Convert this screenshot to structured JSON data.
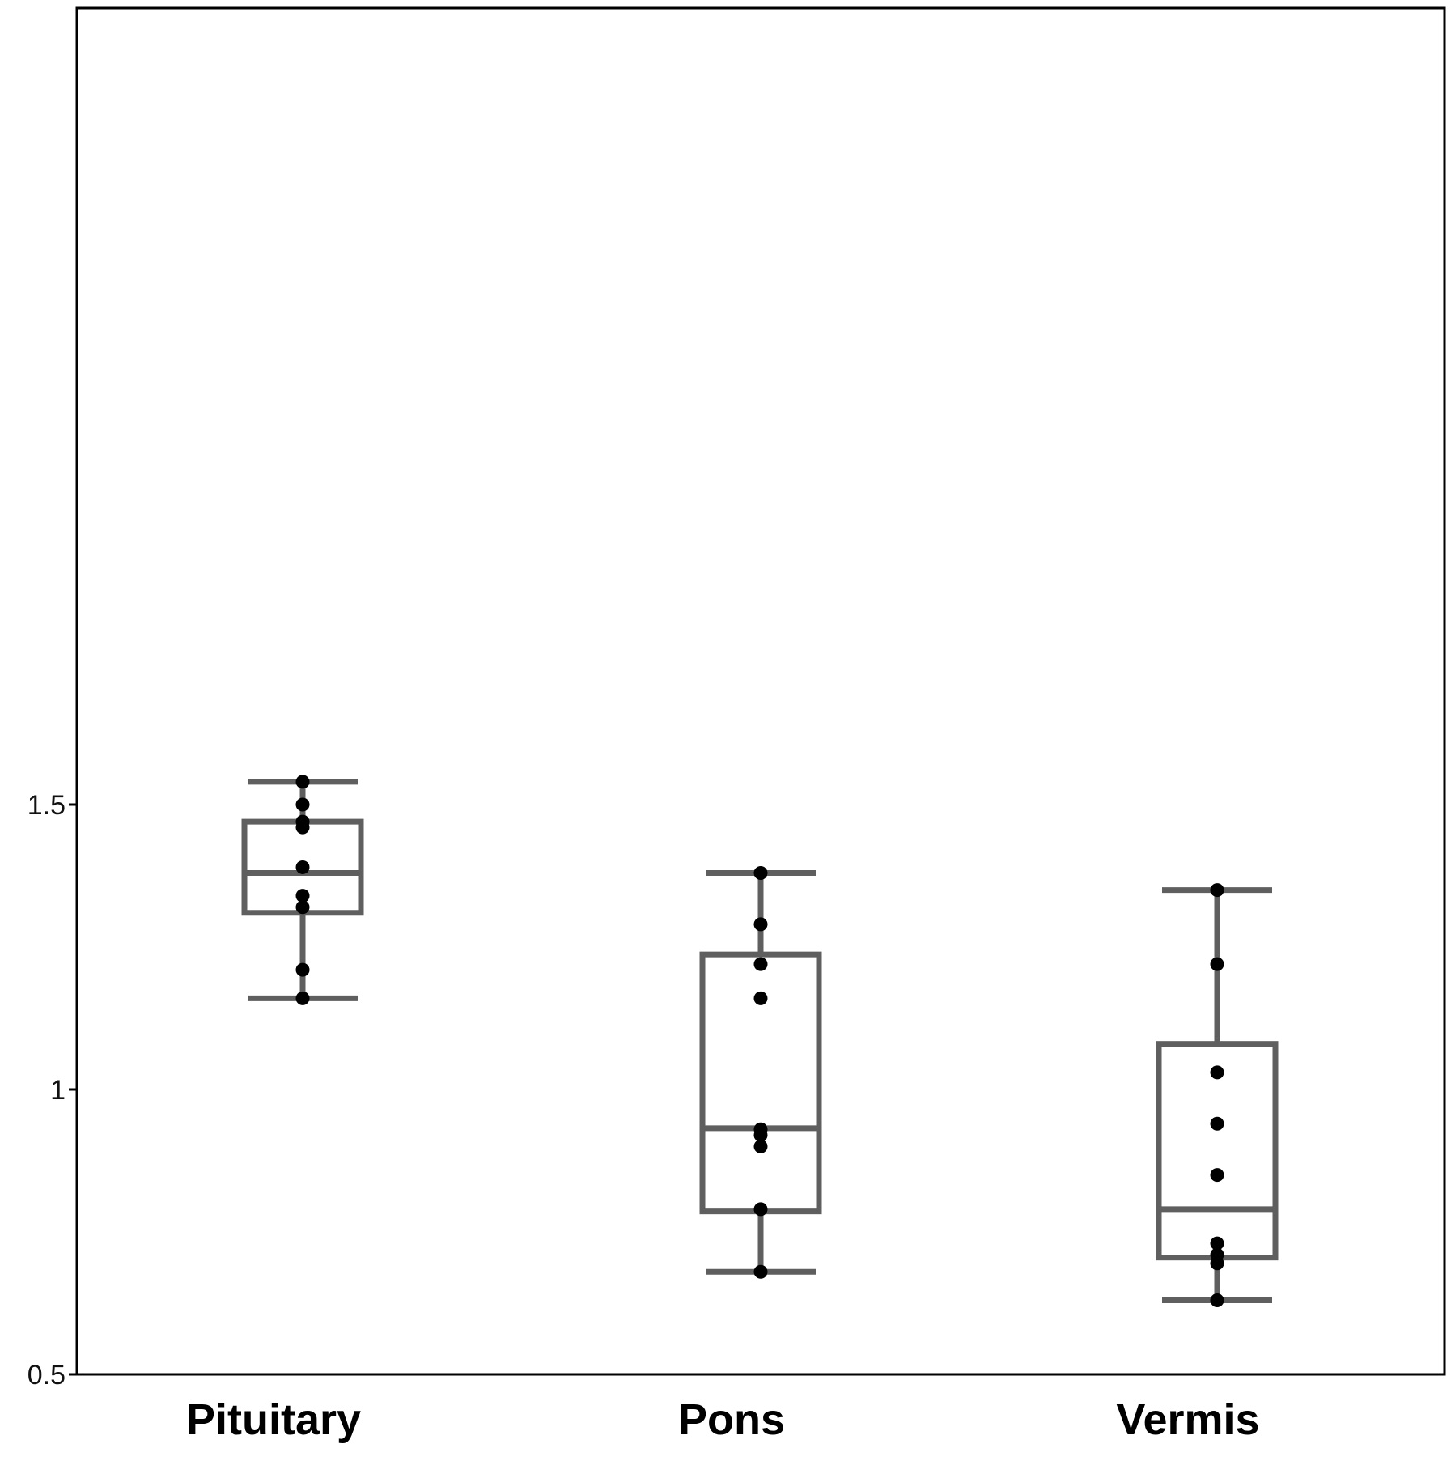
{
  "chart_data": {
    "type": "box",
    "title": "",
    "xlabel": "",
    "ylabel": "",
    "ylim": [
      0.5,
      1.7
    ],
    "yticks": [
      "0.5",
      "1",
      "1.5"
    ],
    "grid": false,
    "categories": [
      "Pituitary",
      "Pons",
      "Vermis"
    ],
    "boxes": [
      {
        "category": "Pituitary",
        "whisker_low": 1.16,
        "q1": 1.31,
        "median": 1.38,
        "q3": 1.47,
        "whisker_high": 1.54,
        "points": [
          1.16,
          1.21,
          1.32,
          1.34,
          1.39,
          1.46,
          1.47,
          1.5,
          1.54
        ]
      },
      {
        "category": "Pons",
        "whisker_low": 0.68,
        "q1": 0.786,
        "median": 0.932,
        "q3": 1.237,
        "whisker_high": 1.38,
        "points": [
          0.68,
          0.79,
          0.9,
          0.92,
          0.93,
          1.16,
          1.22,
          1.29,
          1.38
        ]
      },
      {
        "category": "Vermis",
        "whisker_low": 0.63,
        "q1": 0.705,
        "median": 0.79,
        "q3 2": 1.08,
        "q3": 1.08,
        "whisker_high": 1.35,
        "points": [
          0.63,
          0.695,
          0.71,
          0.73,
          0.85,
          0.94,
          1.03,
          1.22,
          1.35
        ]
      }
    ]
  },
  "colors": {
    "box_stroke": "#5f5f5f",
    "point_fill": "#000000",
    "axis": "#000000",
    "background": "#ffffff"
  }
}
